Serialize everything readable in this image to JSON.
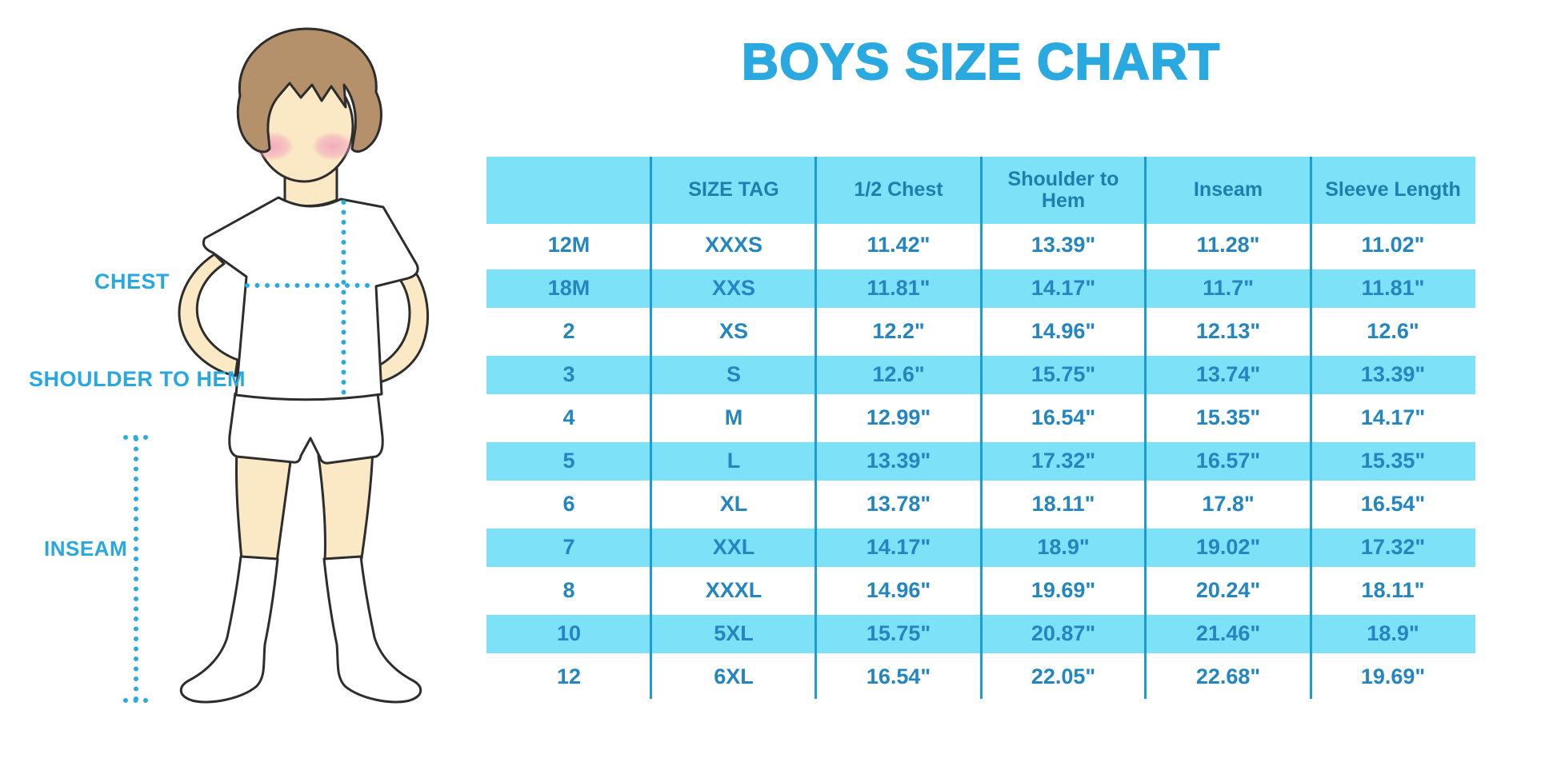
{
  "title": "BOYS SIZE CHART",
  "figure": {
    "labels": {
      "chest": "CHEST",
      "shoulder_to_hem": "SHOULDER TO HEM",
      "inseam": "INSEAM"
    }
  },
  "colors": {
    "accent_blue": "#29A9E0",
    "band_cyan": "#7DE1F8",
    "divider_blue": "#1B9CD4",
    "table_text": "#2386C1",
    "header_text": "#1E7FAE",
    "dotted_line": "#29ABE2",
    "skin": "#FBE8C4",
    "hair": "#B5916B",
    "outline": "#2D2D2D",
    "cheek_pink": "#F2A9BF"
  },
  "chart_data": {
    "type": "table",
    "title": "BOYS SIZE CHART",
    "units": "inches",
    "columns": [
      "",
      "SIZE TAG",
      "1/2 Chest",
      "Shoulder to Hem",
      "Inseam",
      "Sleeve Length"
    ],
    "rows": [
      [
        "12M",
        "XXXS",
        "11.42\"",
        "13.39\"",
        "11.28\"",
        "11.02\""
      ],
      [
        "18M",
        "XXS",
        "11.81\"",
        "14.17\"",
        "11.7\"",
        "11.81\""
      ],
      [
        "2",
        "XS",
        "12.2\"",
        "14.96\"",
        "12.13\"",
        "12.6\""
      ],
      [
        "3",
        "S",
        "12.6\"",
        "15.75\"",
        "13.74\"",
        "13.39\""
      ],
      [
        "4",
        "M",
        "12.99\"",
        "16.54\"",
        "15.35\"",
        "14.17\""
      ],
      [
        "5",
        "L",
        "13.39\"",
        "17.32\"",
        "16.57\"",
        "15.35\""
      ],
      [
        "6",
        "XL",
        "13.78\"",
        "18.11\"",
        "17.8\"",
        "16.54\""
      ],
      [
        "7",
        "XXL",
        "14.17\"",
        "18.9\"",
        "19.02\"",
        "17.32\""
      ],
      [
        "8",
        "XXXL",
        "14.96\"",
        "19.69\"",
        "20.24\"",
        "18.11\""
      ],
      [
        "10",
        "5XL",
        "15.75\"",
        "20.87\"",
        "21.46\"",
        "18.9\""
      ],
      [
        "12",
        "6XL",
        "16.54\"",
        "22.05\"",
        "22.68\"",
        "19.69\""
      ]
    ],
    "measurement_annotations": [
      "CHEST",
      "SHOULDER TO HEM",
      "INSEAM"
    ],
    "legend_position": "none",
    "grid": "column-dividers-only",
    "stripe_pattern": "alternating rows cyan starting at second data row"
  }
}
